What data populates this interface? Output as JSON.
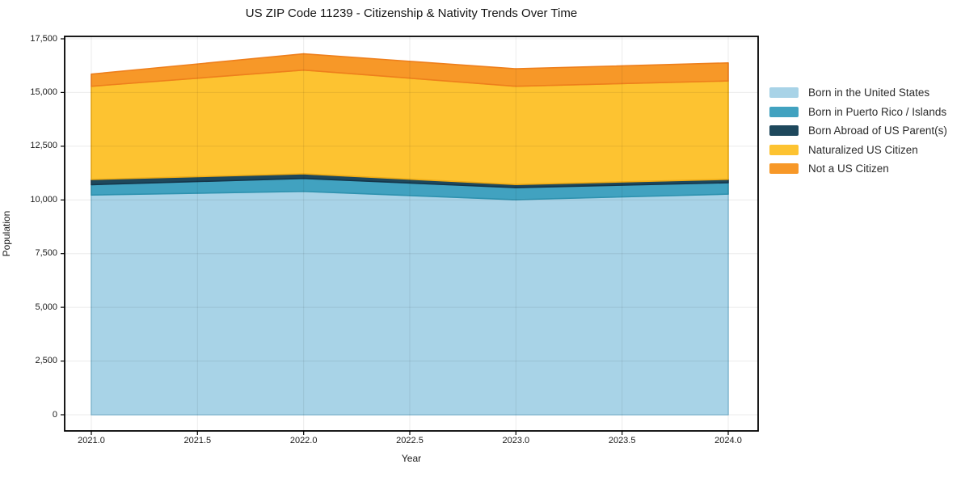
{
  "title": "US ZIP Code 11239 - Citizenship & Nativity Trends Over Time",
  "axes": {
    "x_label": "Year",
    "y_label": "Population",
    "x_ticks": [
      "2021.0",
      "2021.5",
      "2022.0",
      "2022.5",
      "2023.0",
      "2023.5",
      "2024.0"
    ],
    "y_ticks": [
      "0",
      "2,500",
      "5,000",
      "7,500",
      "10,000",
      "12,500",
      "15,000",
      "17,500"
    ]
  },
  "legend": {
    "position": "right-outside",
    "entries": [
      "Born in the United States",
      "Born in Puerto Rico / Islands",
      "Born Abroad of US Parent(s)",
      "Naturalized US Citizen",
      "Not a US Citizen"
    ]
  },
  "colors": {
    "grid": "#ebebeb",
    "axis": "#000000",
    "background": "#ffffff"
  },
  "chart_data": {
    "type": "area",
    "stacked": true,
    "title": "US ZIP Code 11239 - Citizenship & Nativity Trends Over Time",
    "xlabel": "Year",
    "ylabel": "Population",
    "x": [
      2021,
      2022,
      2023,
      2024
    ],
    "xlim": [
      2020.85,
      2024.15
    ],
    "ylim": [
      0,
      17500
    ],
    "grid": true,
    "legend_position": "right",
    "series": [
      {
        "name": "Born in the United States",
        "color": "#A8D3E7",
        "edge": "#8CC3DC",
        "values": [
          10230,
          10400,
          10010,
          10270
        ]
      },
      {
        "name": "Born in Puerto Rico / Islands",
        "color": "#41A2C0",
        "edge": "#2E92AF",
        "values": [
          480,
          600,
          560,
          530
        ]
      },
      {
        "name": "Born Abroad of US Parent(s)",
        "color": "#1E485C",
        "edge": "#15364A",
        "values": [
          240,
          215,
          150,
          160
        ]
      },
      {
        "name": "Naturalized US Citizen",
        "color": "#FDC331",
        "edge": "#EFAC15",
        "values": [
          4340,
          4830,
          4570,
          4580
        ]
      },
      {
        "name": "Not a US Citizen",
        "color": "#F79828",
        "edge": "#EE7F1C",
        "values": [
          565,
          755,
          815,
          840
        ]
      }
    ],
    "totals": [
      15855,
      16800,
      16105,
      16380
    ]
  }
}
